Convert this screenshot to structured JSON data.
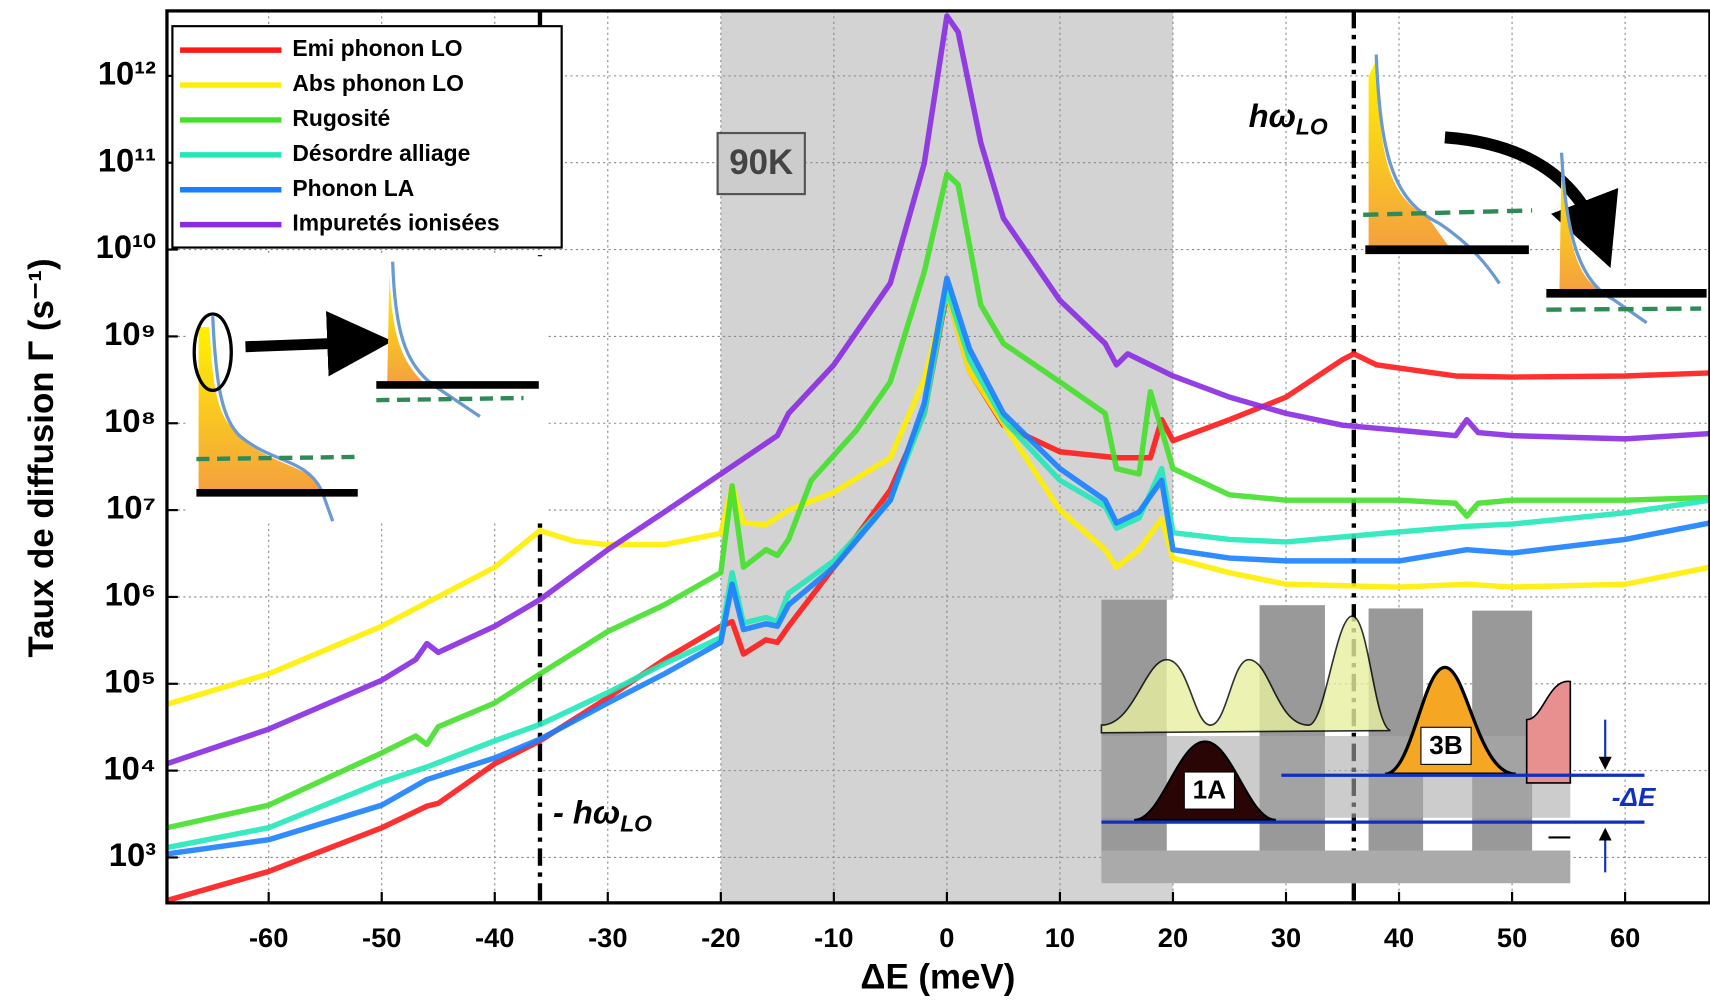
{
  "chart_data": {
    "type": "line",
    "xlabel": "ΔE (meV)",
    "ylabel": "Taux de diffusion  Γ (s⁻¹)",
    "log_y": true,
    "grid": true,
    "legend_loc": "upper left",
    "xlim": [
      -69,
      67.5
    ],
    "ylim": [
      300,
      5600000000000.0
    ],
    "xticks": [
      -60,
      -50,
      -40,
      -30,
      -20,
      -10,
      0,
      10,
      20,
      30,
      40,
      50,
      60
    ],
    "yticks": [
      {
        "value": 1000,
        "label": "10³"
      },
      {
        "value": 10000,
        "label": "10⁴"
      },
      {
        "value": 100000,
        "label": "10⁵"
      },
      {
        "value": 1000000,
        "label": "10⁶"
      },
      {
        "value": 10000000,
        "label": "10⁷"
      },
      {
        "value": 100000000,
        "label": "10⁸"
      },
      {
        "value": 1000000000,
        "label": "10⁹"
      },
      {
        "value": 10000000000,
        "label": "10¹⁰"
      },
      {
        "value": 100000000000,
        "label": "10¹¹"
      },
      {
        "value": 1000000000000,
        "label": "10¹²"
      }
    ],
    "shaded_range": [
      -20,
      20
    ],
    "vlines": [
      -36,
      36
    ],
    "annotations": {
      "temperature": "90K",
      "plus_hw": {
        "text": "hω",
        "sub": "LO"
      },
      "minus_hw": {
        "text": "- hω",
        "sub": "LO"
      },
      "state_1": "1A",
      "state_2": "3B",
      "delta": "-ΔE"
    },
    "series": [
      {
        "name": "Emi phonon LO",
        "color": "#ff1a1a",
        "x": [
          -69,
          -60,
          -50,
          -46,
          -45,
          -40,
          -36,
          -30,
          -25,
          -20,
          -19,
          -18,
          -16,
          -15,
          -14,
          -10,
          -5,
          -2,
          0,
          2,
          5,
          10,
          15,
          18,
          19,
          20,
          25,
          30,
          35,
          36,
          38,
          45,
          50,
          60,
          67.5
        ],
        "values": [
          320.0,
          690.0,
          2200.0,
          3900.0,
          4200.0,
          12000.0,
          22000.0,
          69000.0,
          190000.0,
          460000.0,
          520000.0,
          220000.0,
          320000.0,
          300000.0,
          460000.0,
          2200000.0,
          17000000.0,
          130000000.0,
          3200000000.0,
          400000000.0,
          95000000.0,
          47000000.0,
          40000000.0,
          40000000.0,
          110000000.0,
          63000000.0,
          110000000.0,
          200000000.0,
          540000000.0,
          630000000.0,
          470000000.0,
          350000000.0,
          340000000.0,
          350000000.0,
          380000000.0
        ]
      },
      {
        "name": "Abs phonon LO",
        "color": "#ffee00",
        "x": [
          -69,
          -60,
          -50,
          -40,
          -36,
          -33,
          -30,
          -25,
          -20,
          -19,
          -18,
          -16,
          -14,
          -10,
          -5,
          -2,
          0,
          2,
          5,
          10,
          14,
          15,
          17,
          19,
          20,
          25,
          30,
          40,
          46,
          50,
          60,
          67.5
        ],
        "values": [
          58000.0,
          130000.0,
          460000.0,
          2200000.0,
          5800000.0,
          4400000.0,
          4000000.0,
          4000000.0,
          5400000.0,
          19000000.0,
          7100000.0,
          6800000.0,
          10000000.0,
          16000000.0,
          40000000.0,
          320000000.0,
          3200000000.0,
          400000000.0,
          100000000.0,
          10000000.0,
          3500000.0,
          2200000.0,
          3500000.0,
          7900000.0,
          2800000.0,
          1900000.0,
          1400000.0,
          1300000.0,
          1400000.0,
          1300000.0,
          1400000.0,
          2200000.0
        ]
      },
      {
        "name": "Rugosité",
        "color": "#44e02a",
        "x": [
          -69,
          -60,
          -50,
          -47,
          -46,
          -45,
          -40,
          -36,
          -30,
          -25,
          -20,
          -19,
          -18,
          -16,
          -15,
          -14,
          -12,
          -8,
          -5,
          -2,
          0,
          1,
          3,
          5,
          10,
          14,
          15,
          17,
          18,
          20,
          25,
          30,
          40,
          45,
          46,
          47,
          50,
          60,
          67.5
        ],
        "values": [
          2200.0,
          4000.0,
          16000.0,
          25000.0,
          20000.0,
          32000.0,
          60000.0,
          130000.0,
          400000.0,
          810000.0,
          1900000.0,
          19000000.0,
          2200000.0,
          3500000.0,
          3000000.0,
          4600000.0,
          22000000.0,
          83000000.0,
          300000000.0,
          5500000000.0,
          74000000000.0,
          56000000000.0,
          2300000000.0,
          830000000.0,
          300000000.0,
          130000000.0,
          30000000.0,
          26000000.0,
          230000000.0,
          30000000.0,
          15000000.0,
          13000000.0,
          13000000.0,
          12000000.0,
          8500000.0,
          12000000.0,
          13000000.0,
          13000000.0,
          14000000.0
        ]
      },
      {
        "name": "Désordre alliage",
        "color": "#22e8b8",
        "x": [
          -69,
          -60,
          -50,
          -46,
          -40,
          -36,
          -30,
          -25,
          -20,
          -19,
          -18,
          -16,
          -15,
          -14,
          -10,
          -5,
          -2,
          0,
          2,
          5,
          10,
          14,
          15,
          17,
          19,
          20,
          25,
          30,
          40,
          46,
          50,
          60,
          67.5
        ],
        "values": [
          1300.0,
          2200.0,
          7400.0,
          11000.0,
          22000.0,
          34000.0,
          79000.0,
          170000.0,
          340000.0,
          1900000.0,
          500000.0,
          580000.0,
          520000.0,
          1100000.0,
          2600000.0,
          13000000.0,
          130000000.0,
          3500000000.0,
          540000000.0,
          110000000.0,
          22000000.0,
          11000000.0,
          6200000.0,
          8100000.0,
          30000000.0,
          5500000.0,
          4600000.0,
          4300000.0,
          5600000.0,
          6500000.0,
          6900000.0,
          9300000.0,
          13000000.0
        ]
      },
      {
        "name": "Phonon LA",
        "color": "#1a7fff",
        "x": [
          -69,
          -60,
          -50,
          -46,
          -40,
          -36,
          -30,
          -25,
          -20,
          -19,
          -18,
          -16,
          -15,
          -14,
          -10,
          -5,
          -2,
          0,
          2,
          5,
          10,
          14,
          15,
          17,
          19,
          20,
          25,
          30,
          40,
          46,
          50,
          60,
          67.5
        ],
        "values": [
          1100.0,
          1600.0,
          4000.0,
          7900.0,
          14000.0,
          23000.0,
          60000.0,
          130000.0,
          300000.0,
          1400000.0,
          420000.0,
          490000.0,
          460000.0,
          810000.0,
          2200000.0,
          13000000.0,
          170000000.0,
          4700000000.0,
          720000000.0,
          130000000.0,
          30000000.0,
          13000000.0,
          7100000.0,
          9500000.0,
          22000000.0,
          3500000.0,
          2800000.0,
          2600000.0,
          2600000.0,
          3500000.0,
          3200000.0,
          4600000.0,
          7100000.0
        ]
      },
      {
        "name": "Impuretés ionisées",
        "color": "#8a2be2",
        "x": [
          -69,
          -60,
          -50,
          -47,
          -46,
          -45,
          -40,
          -36,
          -30,
          -25,
          -20,
          -15,
          -14,
          -10,
          -5,
          -2,
          0,
          1,
          3,
          5,
          10,
          14,
          15,
          16,
          20,
          25,
          30,
          35,
          40,
          45,
          46,
          47,
          50,
          60,
          67.5
        ],
        "values": [
          12000.0,
          30000.0,
          110000.0,
          190000.0,
          290000.0,
          230000.0,
          460000.0,
          930000.0,
          3500000.0,
          9500000.0,
          26000000.0,
          72000000.0,
          130000000.0,
          470000000.0,
          4100000000.0,
          98000000000.0,
          4900000000000.0,
          3200000000000.0,
          170000000000.0,
          23000000000.0,
          2600000000.0,
          830000000.0,
          470000000.0,
          630000000.0,
          350000000.0,
          200000000.0,
          130000000.0,
          95000000.0,
          83000000.0,
          72000000.0,
          110000000.0,
          78000000.0,
          72000000.0,
          66000000.0,
          76000000.0
        ]
      }
    ]
  }
}
